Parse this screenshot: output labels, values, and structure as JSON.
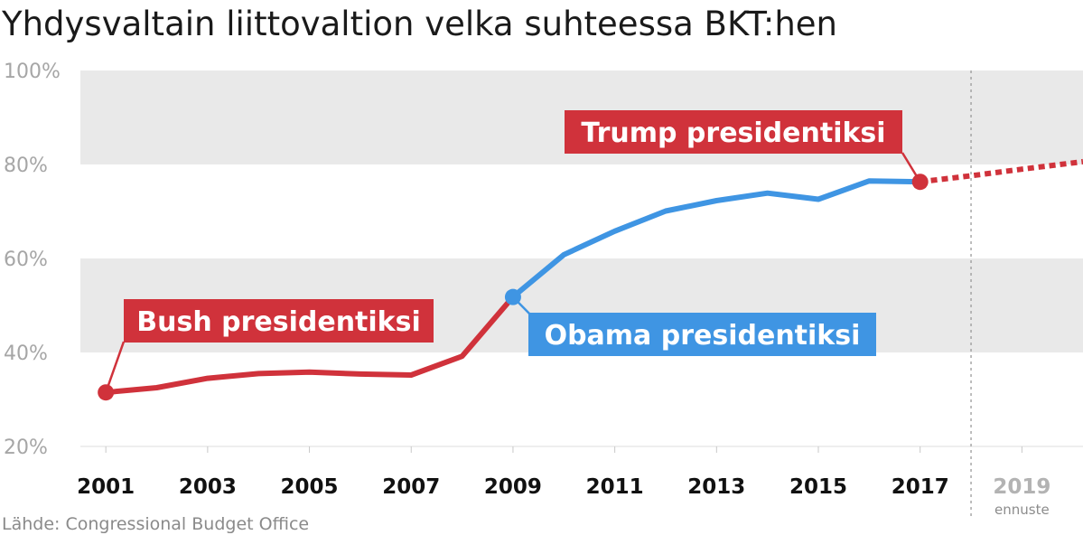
{
  "chart_data": {
    "type": "line",
    "title": "Yhdysvaltain liittovaltion velka suhteessa BKT:hen",
    "source": "Lähde: Congressional Budget Office",
    "ylim": [
      20,
      100
    ],
    "y_ticks": [
      "20%",
      "40%",
      "60%",
      "80%",
      "100%"
    ],
    "y_tick_values": [
      20,
      40,
      60,
      80,
      100
    ],
    "x_ticks": [
      {
        "label": "2001",
        "value": 2001
      },
      {
        "label": "2003",
        "value": 2003
      },
      {
        "label": "2005",
        "value": 2005
      },
      {
        "label": "2007",
        "value": 2007
      },
      {
        "label": "2009",
        "value": 2009
      },
      {
        "label": "2011",
        "value": 2011
      },
      {
        "label": "2013",
        "value": 2013
      },
      {
        "label": "2015",
        "value": 2015
      },
      {
        "label": "2017",
        "value": 2017
      },
      {
        "label": "2019",
        "value": 2019
      }
    ],
    "xlim": [
      2000.5,
      2020.2
    ],
    "projection_label": "ennuste",
    "projection_start": 2018,
    "grid_bands": true,
    "colors": {
      "bush": "#d0323b",
      "obama": "#3f95e3",
      "trump": "#d0323b",
      "band": "#e9e9e9"
    },
    "series": [
      {
        "key": "bush",
        "x": [
          2001,
          2002,
          2003,
          2004,
          2005,
          2006,
          2007,
          2008,
          2009
        ],
        "y": [
          31.5,
          32.5,
          34.5,
          35.5,
          35.8,
          35.4,
          35.2,
          39.2,
          51.8
        ]
      },
      {
        "key": "obama",
        "x": [
          2009,
          2010,
          2011,
          2012,
          2013,
          2014,
          2015,
          2016,
          2017
        ],
        "y": [
          51.8,
          60.8,
          65.8,
          70.1,
          72.3,
          73.9,
          72.6,
          76.5,
          76.3
        ]
      },
      {
        "key": "trump",
        "dashed": true,
        "x": [
          2017,
          2018,
          2019,
          2020.2
        ],
        "y": [
          76.3,
          77.6,
          79.0,
          80.6
        ]
      }
    ],
    "annotations": [
      {
        "key": "bush",
        "text": "Bush presidentiksi",
        "x": 2001,
        "y": 31.5
      },
      {
        "key": "obama",
        "text": "Obama presidentiksi",
        "x": 2009,
        "y": 51.8
      },
      {
        "key": "trump",
        "text": "Trump presidentiksi",
        "x": 2017,
        "y": 76.3
      }
    ]
  }
}
